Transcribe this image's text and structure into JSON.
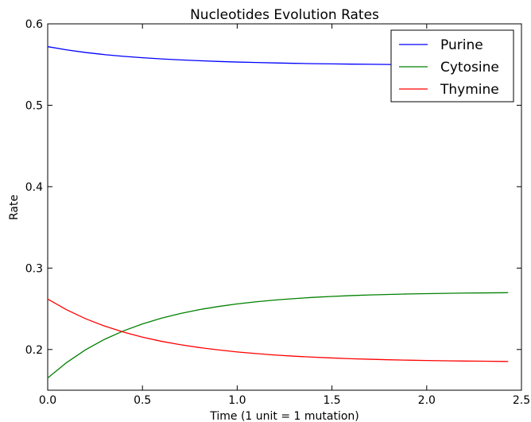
{
  "chart_data": {
    "type": "line",
    "title": "Nucleotides Evolution Rates",
    "xlabel": "Time (1 unit = 1 mutation)",
    "ylabel": "Rate",
    "xlim": [
      0.0,
      2.5
    ],
    "ylim": [
      0.15,
      0.6
    ],
    "xticks": [
      "0.0",
      "0.5",
      "1.0",
      "1.5",
      "2.0",
      "2.5"
    ],
    "yticks": [
      "0.2",
      "0.3",
      "0.4",
      "0.5",
      "0.6"
    ],
    "grid": false,
    "legend_position": "top-right",
    "series": [
      {
        "name": "Purine",
        "color": "#0000ff",
        "x": [
          0.0,
          0.1,
          0.2,
          0.3,
          0.4,
          0.5,
          0.6,
          0.7,
          0.8,
          0.9,
          1.0,
          1.1,
          1.2,
          1.3,
          1.4,
          1.5,
          1.6,
          1.7,
          1.8,
          1.9,
          2.0,
          2.1,
          2.2,
          2.3,
          2.43
        ],
        "values": [
          0.572,
          0.568,
          0.5648,
          0.5622,
          0.5601,
          0.5584,
          0.5569,
          0.5557,
          0.5547,
          0.5538,
          0.5531,
          0.5525,
          0.552,
          0.5515,
          0.5511,
          0.5508,
          0.5505,
          0.5503,
          0.5501,
          0.5499,
          0.5498,
          0.5497,
          0.5496,
          0.5495,
          0.5494
        ]
      },
      {
        "name": "Cytosine",
        "color": "#008000",
        "x": [
          0.0,
          0.1,
          0.2,
          0.3,
          0.4,
          0.5,
          0.6,
          0.7,
          0.8,
          0.9,
          1.0,
          1.1,
          1.2,
          1.3,
          1.4,
          1.5,
          1.6,
          1.7,
          1.8,
          1.9,
          2.0,
          2.1,
          2.2,
          2.3,
          2.43
        ],
        "values": [
          0.165,
          0.184,
          0.1997,
          0.2125,
          0.2229,
          0.2314,
          0.2385,
          0.2442,
          0.249,
          0.2528,
          0.256,
          0.2586,
          0.2608,
          0.2625,
          0.264,
          0.2652,
          0.2662,
          0.267,
          0.2676,
          0.2682,
          0.2686,
          0.269,
          0.2693,
          0.2695,
          0.2698
        ]
      },
      {
        "name": "Thymine",
        "color": "#ff0000",
        "x": [
          0.0,
          0.1,
          0.2,
          0.3,
          0.4,
          0.5,
          0.6,
          0.7,
          0.8,
          0.9,
          1.0,
          1.1,
          1.2,
          1.3,
          1.4,
          1.5,
          1.6,
          1.7,
          1.8,
          1.9,
          2.0,
          2.1,
          2.2,
          2.3,
          2.43
        ],
        "values": [
          0.262,
          0.2488,
          0.2378,
          0.2288,
          0.2214,
          0.2152,
          0.2101,
          0.2059,
          0.2024,
          0.1995,
          0.197,
          0.195,
          0.1932,
          0.1918,
          0.1906,
          0.1896,
          0.1887,
          0.188,
          0.1874,
          0.1869,
          0.1865,
          0.1861,
          0.1858,
          0.1856,
          0.1853
        ]
      }
    ]
  }
}
